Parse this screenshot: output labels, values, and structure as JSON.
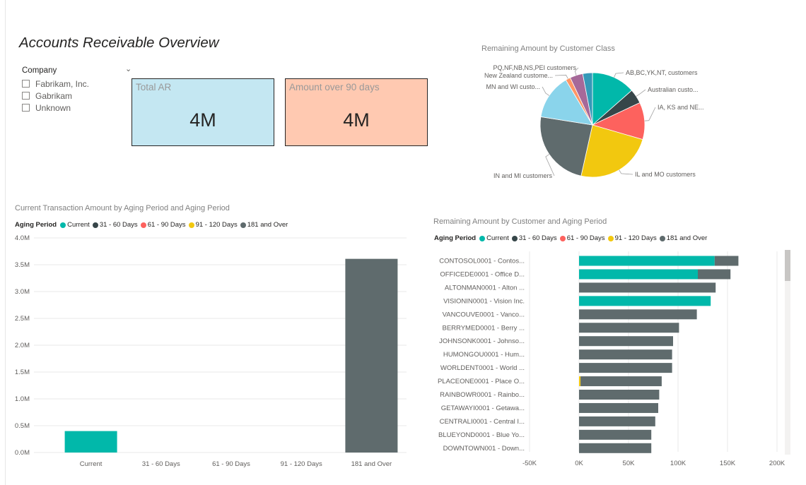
{
  "page": {
    "title": "Accounts Receivable Overview"
  },
  "colors": {
    "current": "#01B8AA",
    "d31_60": "#374649",
    "d61_90": "#FD625E",
    "d91_120": "#F2C80F",
    "d181": "#5F6B6D",
    "card_total_bg": "#C4E7F2",
    "card_over90_bg": "#FFC9B1"
  },
  "slicer": {
    "title": "Company",
    "items": [
      "Fabrikam, Inc.",
      "Gabrikam",
      "Unknown"
    ]
  },
  "cards": {
    "total_ar": {
      "label": "Total AR",
      "value": "4M"
    },
    "over_90": {
      "label": "Amount over 90 days",
      "value": "4M"
    }
  },
  "legend": {
    "title": "Aging Period",
    "items": [
      {
        "label": "Current",
        "color": "#01B8AA"
      },
      {
        "label": "31 - 60 Days",
        "color": "#374649"
      },
      {
        "label": "61 - 90 Days",
        "color": "#FD625E"
      },
      {
        "label": "91 - 120 Days",
        "color": "#F2C80F"
      },
      {
        "label": "181 and Over",
        "color": "#5F6B6D"
      }
    ]
  },
  "chart_data": [
    {
      "type": "pie",
      "title": "Remaining Amount by Customer Class",
      "slices": [
        {
          "label": "AB,BC,YK,NT, customers",
          "value": 13.5,
          "color": "#01B8AA"
        },
        {
          "label": "Australian custo...",
          "value": 4.5,
          "color": "#374649"
        },
        {
          "label": "IA, KS and NE...",
          "value": 11.5,
          "color": "#FD625E"
        },
        {
          "label": "IL and MO customers",
          "value": 24,
          "color": "#F2C80F"
        },
        {
          "label": "IN and MI customers",
          "value": 24,
          "color": "#5F6B6D"
        },
        {
          "label": "MN and WI custo...",
          "value": 14,
          "color": "#8AD4EB"
        },
        {
          "label": "New Zealand custome...",
          "value": 1.5,
          "color": "#FE9666"
        },
        {
          "label": "PQ,NF,NB,NS,PEI customers",
          "value": 4,
          "color": "#A66999"
        },
        {
          "label": "",
          "value": 3,
          "color": "#3599B8"
        }
      ]
    },
    {
      "type": "bar",
      "title": "Current Transaction Amount by Aging Period and Aging Period",
      "categories": [
        "Current",
        "31 - 60 Days",
        "61 - 90 Days",
        "91 - 120 Days",
        "181 and Over"
      ],
      "values": [
        400000,
        0,
        0,
        0,
        3610000
      ],
      "colors": [
        "#01B8AA",
        "#374649",
        "#FD625E",
        "#F2C80F",
        "#5F6B6D"
      ],
      "ylim": [
        0,
        4000000
      ],
      "yticks": [
        {
          "value": 0,
          "label": "0.0M"
        },
        {
          "value": 500000,
          "label": "0.5M"
        },
        {
          "value": 1000000,
          "label": "1.0M"
        },
        {
          "value": 1500000,
          "label": "1.5M"
        },
        {
          "value": 2000000,
          "label": "2.0M"
        },
        {
          "value": 2500000,
          "label": "2.5M"
        },
        {
          "value": 3000000,
          "label": "3.0M"
        },
        {
          "value": 3500000,
          "label": "3.5M"
        },
        {
          "value": 4000000,
          "label": "4.0M"
        }
      ],
      "grid": true
    },
    {
      "type": "bar",
      "orientation": "horizontal",
      "stacked": true,
      "title": "Remaining Amount by Customer and Aging Period",
      "categories": [
        "CONTOSOL0001 - Contos...",
        "OFFICEDE0001 - Office D...",
        "ALTONMAN0001 - Alton ...",
        "VISIONIN0001 - Vision Inc.",
        "VANCOUVE0001 - Vanco...",
        "BERRYMED0001 - Berry ...",
        "JOHNSONK0001 - Johnso...",
        "HUMONGOU0001 - Hum...",
        "WORLDENT0001 - World ...",
        "PLACEONE0001 - Place O...",
        "RAINBOWR0001 - Rainbo...",
        "GETAWAYI0001 - Getawa...",
        "CENTRALI0001 - Central I...",
        "BLUEYOND0001 - Blue Yo...",
        "DOWNTOWN001 - Down..."
      ],
      "series": [
        {
          "name": "Current",
          "color": "#01B8AA",
          "values": [
            137000,
            120000,
            0,
            133000,
            0,
            0,
            0,
            0,
            0,
            0,
            0,
            0,
            0,
            0,
            0
          ]
        },
        {
          "name": "91 - 120 Days",
          "color": "#F2C80F",
          "values": [
            0,
            0,
            0,
            0,
            0,
            0,
            0,
            0,
            0,
            1500,
            0,
            0,
            0,
            0,
            0
          ]
        },
        {
          "name": "181 and Over",
          "color": "#5F6B6D",
          "values": [
            24000,
            33000,
            138000,
            0,
            119000,
            101000,
            95000,
            94000,
            94000,
            82000,
            81000,
            80000,
            77000,
            73000,
            73000
          ]
        }
      ],
      "xlim": [
        -50000,
        200000
      ],
      "xticks": [
        {
          "value": -50000,
          "label": "-50K"
        },
        {
          "value": 0,
          "label": "0K"
        },
        {
          "value": 50000,
          "label": "50K"
        },
        {
          "value": 100000,
          "label": "100K"
        },
        {
          "value": 150000,
          "label": "150K"
        },
        {
          "value": 200000,
          "label": "200K"
        }
      ],
      "grid": true
    }
  ]
}
